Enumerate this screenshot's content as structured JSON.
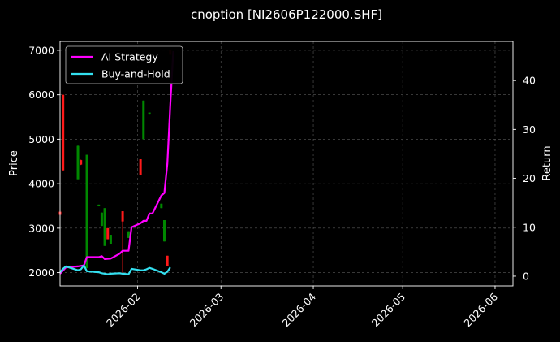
{
  "chart_data": {
    "type": "candlestick+line",
    "title": "cnoption [NI2606P122000.SHF]",
    "ylabel_left": "Price",
    "ylabel_right": "Return",
    "xlim": [
      "2026-01-06",
      "2026-06-07"
    ],
    "ylim_left": [
      1700,
      7200
    ],
    "ylim_right": [
      -2,
      48
    ],
    "x_ticks": [
      "2026-02",
      "2026-03",
      "2026-04",
      "2026-05",
      "2026-06"
    ],
    "y_ticks_left": [
      2000,
      3000,
      4000,
      5000,
      6000,
      7000
    ],
    "y_ticks_right": [
      0,
      10,
      20,
      30,
      40
    ],
    "grid": true,
    "legend_position": "top-left",
    "colors": {
      "background": "#000000",
      "up": "#008800",
      "down": "#ff1a1a",
      "strategy": "#ff00ff",
      "buyhold": "#33e0f0"
    },
    "candles": [
      {
        "date": "2026-01-06",
        "open": 3370,
        "close": 3300,
        "high": 3400,
        "low": 3280
      },
      {
        "date": "2026-01-07",
        "open": 6000,
        "close": 4300,
        "high": 6000,
        "low": 4300
      },
      {
        "date": "2026-01-12",
        "open": 4100,
        "close": 4850,
        "high": 4860,
        "low": 4100
      },
      {
        "date": "2026-01-13",
        "open": 4530,
        "close": 4430,
        "high": 4540,
        "low": 4420
      },
      {
        "date": "2026-01-15",
        "open": 2100,
        "close": 4650,
        "high": 4650,
        "low": 2100
      },
      {
        "date": "2026-01-19",
        "open": 3500,
        "close": 3530,
        "high": 3530,
        "low": 3490
      },
      {
        "date": "2026-01-20",
        "open": 3050,
        "close": 3350,
        "high": 3350,
        "low": 3050
      },
      {
        "date": "2026-01-21",
        "open": 2600,
        "close": 3450,
        "high": 3450,
        "low": 2600
      },
      {
        "date": "2026-01-22",
        "open": 3000,
        "close": 2750,
        "high": 3000,
        "low": 2750
      },
      {
        "date": "2026-01-23",
        "open": 2650,
        "close": 2850,
        "high": 2850,
        "low": 2650
      },
      {
        "date": "2026-01-27",
        "open": 3380,
        "close": 3150,
        "high": 3380,
        "low": 2000
      },
      {
        "date": "2026-01-29",
        "open": 2780,
        "close": 2930,
        "high": 2930,
        "low": 2780
      },
      {
        "date": "2026-02-02",
        "open": 4550,
        "close": 4200,
        "high": 4550,
        "low": 4200
      },
      {
        "date": "2026-02-03",
        "open": 5000,
        "close": 5870,
        "high": 5870,
        "low": 5000
      },
      {
        "date": "2026-02-05",
        "open": 5580,
        "close": 5600,
        "high": 5600,
        "low": 5570
      },
      {
        "date": "2026-02-09",
        "open": 3450,
        "close": 3550,
        "high": 3550,
        "low": 3450
      },
      {
        "date": "2026-02-10",
        "open": 2700,
        "close": 3180,
        "high": 3180,
        "low": 2700
      },
      {
        "date": "2026-02-11",
        "open": 2380,
        "close": 2150,
        "high": 2380,
        "low": 2150
      },
      {
        "date": "2026-02-12",
        "open": 7000,
        "close": 6900,
        "high": 7000,
        "low": 6900
      }
    ],
    "series": [
      {
        "name": "AI Strategy",
        "x": [
          "2026-01-06",
          "2026-01-08",
          "2026-01-12",
          "2026-01-14",
          "2026-01-15",
          "2026-01-19",
          "2026-01-20",
          "2026-01-21",
          "2026-01-23",
          "2026-01-26",
          "2026-01-27",
          "2026-01-29",
          "2026-01-30",
          "2026-02-02",
          "2026-02-03",
          "2026-02-04",
          "2026-02-05",
          "2026-02-06",
          "2026-02-09",
          "2026-02-10",
          "2026-02-11",
          "2026-02-12",
          "2026-02-13"
        ],
        "values": [
          0.5,
          1.8,
          2.0,
          2.2,
          3.9,
          3.9,
          4.1,
          3.5,
          3.6,
          4.6,
          5.2,
          5.2,
          10.0,
          10.8,
          11.3,
          11.3,
          12.8,
          12.8,
          16.5,
          17.0,
          23.0,
          35.0,
          46.0
        ]
      },
      {
        "name": "Buy-and-Hold",
        "x": [
          "2026-01-06",
          "2026-01-07",
          "2026-01-08",
          "2026-01-12",
          "2026-01-13",
          "2026-01-14",
          "2026-01-15",
          "2026-01-19",
          "2026-01-20",
          "2026-01-21",
          "2026-01-22",
          "2026-01-23",
          "2026-01-26",
          "2026-01-27",
          "2026-01-29",
          "2026-01-30",
          "2026-02-02",
          "2026-02-03",
          "2026-02-04",
          "2026-02-05",
          "2026-02-06",
          "2026-02-09",
          "2026-02-10",
          "2026-02-11",
          "2026-02-12"
        ],
        "values": [
          0.8,
          1.5,
          2.0,
          1.2,
          1.4,
          2.2,
          1.0,
          0.8,
          0.6,
          0.5,
          0.4,
          0.5,
          0.6,
          0.5,
          0.4,
          1.5,
          1.2,
          1.2,
          1.4,
          1.7,
          1.5,
          0.8,
          0.5,
          0.9,
          1.8
        ]
      }
    ]
  }
}
